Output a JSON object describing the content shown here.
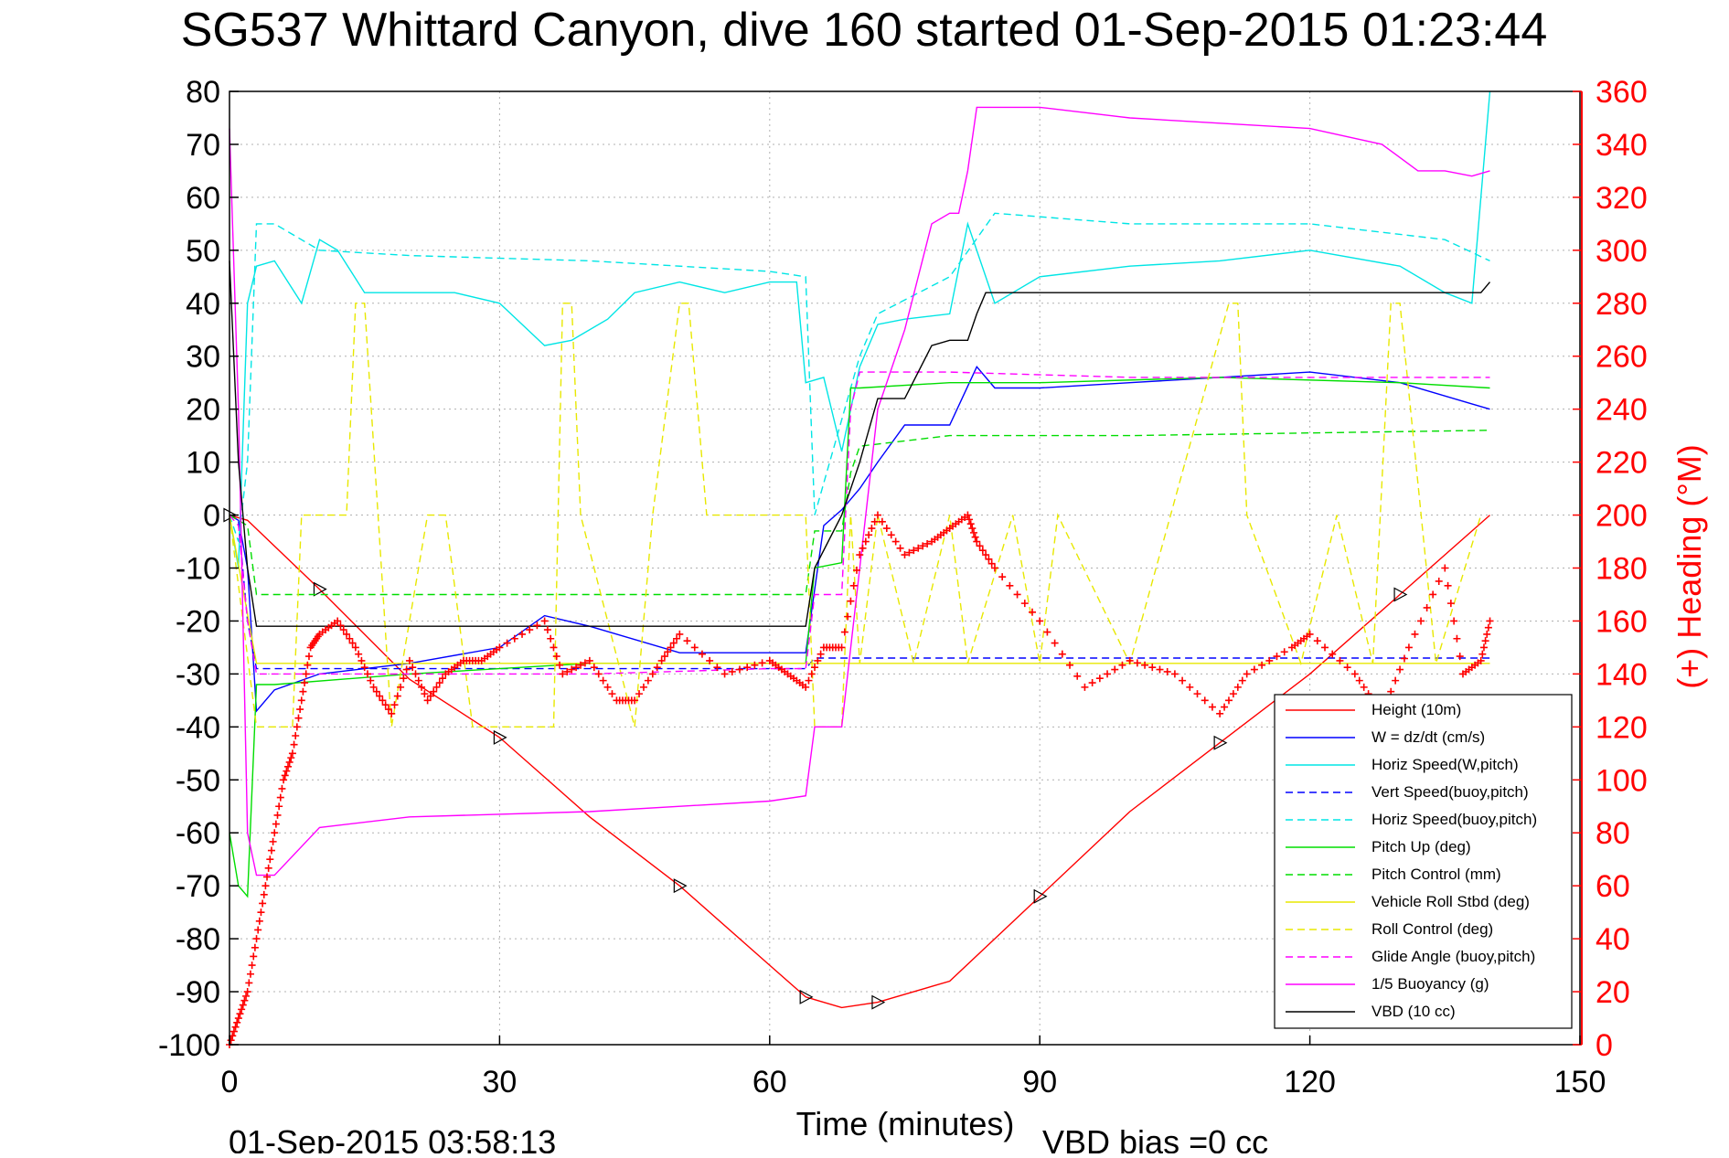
{
  "chart_data": {
    "type": "line",
    "title": "SG537 Whittard Canyon, dive 160 started 01-Sep-2015 01:23:44",
    "xlabel": "Time (minutes)",
    "ylabel_right": "(+) Heading (°M)",
    "footer_left": "01-Sep-2015 03:58:13",
    "footer_right": "VBD bias =0 cc",
    "xlim": [
      0,
      150
    ],
    "ylim": [
      -100,
      80
    ],
    "ylim_right": [
      0,
      360
    ],
    "x_ticks": [
      "0",
      "30",
      "60",
      "90",
      "120",
      "150"
    ],
    "y_ticks": [
      "80",
      "70",
      "60",
      "50",
      "40",
      "30",
      "20",
      "10",
      "0",
      "-10",
      "-20",
      "-30",
      "-40",
      "-50",
      "-60",
      "-70",
      "-80",
      "-90",
      "-100"
    ],
    "y_ticks_right": [
      "360",
      "340",
      "320",
      "300",
      "280",
      "260",
      "240",
      "220",
      "200",
      "180",
      "160",
      "140",
      "120",
      "100",
      "80",
      "60",
      "40",
      "20",
      "0"
    ],
    "grid": true,
    "legend_position": "bottom-right",
    "series": [
      {
        "name": "Height (10m)",
        "color": "#ff0000",
        "dash": "solid",
        "axis": "left",
        "x": [
          0,
          2,
          10,
          20,
          30,
          40,
          50,
          60,
          64,
          68,
          72,
          80,
          90,
          100,
          110,
          120,
          130,
          140
        ],
        "y": [
          0,
          -1,
          -14,
          -31,
          -42,
          -57,
          -70,
          -85,
          -91,
          -93,
          -92,
          -88,
          -72,
          -56,
          -43,
          -30,
          -15,
          0
        ]
      },
      {
        "name": "W = dz/dt (cm/s)",
        "color": "#0000ff",
        "dash": "solid",
        "axis": "left",
        "x": [
          0,
          1,
          2,
          3,
          5,
          10,
          20,
          30,
          35,
          40,
          50,
          60,
          64,
          66,
          68,
          70,
          72,
          75,
          80,
          83,
          85,
          90,
          100,
          110,
          120,
          130,
          138,
          140
        ],
        "y": [
          0,
          -1,
          -10,
          -37,
          -33,
          -30,
          -28,
          -25,
          -19,
          -21,
          -26,
          -26,
          -26,
          -2,
          1,
          5,
          10,
          17,
          17,
          28,
          24,
          24,
          25,
          26,
          27,
          25,
          21,
          20
        ]
      },
      {
        "name": "Horiz Speed(W,pitch)",
        "color": "#00e5e5",
        "dash": "solid",
        "axis": "left",
        "x": [
          0,
          1,
          2,
          3,
          5,
          8,
          10,
          12,
          15,
          20,
          25,
          30,
          35,
          38,
          42,
          45,
          50,
          55,
          60,
          63,
          64,
          66,
          68,
          70,
          72,
          75,
          80,
          82,
          85,
          90,
          100,
          110,
          120,
          130,
          135,
          138,
          140
        ],
        "y": [
          0,
          -10,
          40,
          47,
          48,
          40,
          52,
          50,
          42,
          42,
          42,
          40,
          32,
          33,
          37,
          42,
          44,
          42,
          44,
          44,
          25,
          26,
          12,
          28,
          36,
          37,
          38,
          55,
          40,
          45,
          47,
          48,
          50,
          47,
          42,
          40,
          80
        ]
      },
      {
        "name": "Vert Speed(buoy,pitch)",
        "color": "#0000ff",
        "dash": "dashed",
        "axis": "left",
        "x": [
          0,
          1,
          2,
          3,
          64,
          65,
          66,
          70,
          140
        ],
        "y": [
          0,
          -1,
          -20,
          -29,
          -29,
          -27,
          -27,
          -27,
          -27
        ]
      },
      {
        "name": "Horiz Speed(buoy,pitch)",
        "color": "#00e5e5",
        "dash": "dashed",
        "axis": "left",
        "x": [
          0,
          1,
          2,
          3,
          5,
          10,
          20,
          40,
          60,
          64,
          65,
          70,
          72,
          80,
          85,
          100,
          120,
          135,
          140
        ],
        "y": [
          0,
          -5,
          10,
          55,
          55,
          50,
          49,
          48,
          46,
          45,
          0,
          30,
          38,
          45,
          57,
          55,
          55,
          52,
          48
        ]
      },
      {
        "name": "Pitch Up (deg)",
        "color": "#00dd00",
        "dash": "solid",
        "axis": "left",
        "x": [
          0,
          1,
          2,
          3,
          5,
          20,
          40,
          64,
          65,
          68,
          69,
          70,
          80,
          90,
          110,
          130,
          140
        ],
        "y": [
          -60,
          -70,
          -72,
          -32,
          -32,
          -30,
          -28,
          -28,
          -10,
          -9,
          24,
          24,
          25,
          25,
          26,
          25,
          24
        ]
      },
      {
        "name": "Pitch Control (mm)",
        "color": "#00dd00",
        "dash": "dashed",
        "axis": "left",
        "x": [
          0,
          2,
          3,
          30,
          64,
          65,
          68,
          69,
          70,
          80,
          81,
          100,
          140
        ],
        "y": [
          0,
          -2,
          -15,
          -15,
          -15,
          -3,
          -3,
          8,
          13,
          15,
          15,
          15,
          16
        ]
      },
      {
        "name": "Vehicle Roll Stbd (deg)",
        "color": "#e8e800",
        "dash": "solid",
        "axis": "left",
        "x": [
          0,
          3,
          10,
          20,
          30,
          40,
          50,
          60,
          64,
          70,
          80,
          90,
          100,
          110,
          120,
          130,
          140
        ],
        "y": [
          0,
          -28,
          -28,
          -28,
          -28,
          -28,
          -28,
          -28,
          -28,
          -28,
          -28,
          -28,
          -28,
          -28,
          -28,
          -28,
          -28
        ]
      },
      {
        "name": "Roll Control (deg)",
        "color": "#e8e800",
        "dash": "dashed",
        "axis": "left",
        "x": [
          0,
          3,
          7,
          8,
          13,
          14,
          15,
          18,
          22,
          24,
          27,
          36,
          37,
          38,
          39,
          45,
          47,
          50,
          51,
          53,
          64,
          65,
          68,
          69,
          70,
          72,
          76,
          80,
          82,
          87,
          90,
          92,
          100,
          111,
          112,
          113,
          119,
          123,
          127,
          129,
          130,
          134,
          139
        ],
        "y": [
          0,
          -40,
          -40,
          0,
          0,
          40,
          40,
          -40,
          0,
          0,
          -40,
          -40,
          40,
          40,
          0,
          -40,
          0,
          40,
          40,
          0,
          0,
          -40,
          -40,
          0,
          -28,
          0,
          -28,
          0,
          -28,
          0,
          -28,
          0,
          -28,
          40,
          40,
          0,
          -28,
          0,
          -28,
          40,
          40,
          -28,
          0
        ]
      },
      {
        "name": "Glide Angle (buoy,pitch)",
        "color": "#ff00ff",
        "dash": "dashed",
        "axis": "left",
        "x": [
          0,
          1,
          2,
          3,
          20,
          40,
          60,
          64,
          65,
          68,
          69,
          70,
          80,
          100,
          120,
          140
        ],
        "y": [
          0,
          -2,
          -20,
          -30,
          -30,
          -30,
          -29,
          -29,
          -15,
          -15,
          20,
          27,
          27,
          26,
          26,
          26
        ]
      },
      {
        "name": "1/5 Buoyancy (g)",
        "color": "#ff00ff",
        "dash": "solid",
        "axis": "left",
        "x": [
          0,
          1,
          2,
          3,
          5,
          10,
          20,
          40,
          60,
          64,
          65,
          68,
          72,
          75,
          78,
          80,
          81,
          82,
          83,
          85,
          90,
          100,
          120,
          128,
          132,
          135,
          138,
          140
        ],
        "y": [
          73,
          20,
          -60,
          -68,
          -68,
          -59,
          -57,
          -56,
          -54,
          -53,
          -40,
          -40,
          20,
          35,
          55,
          57,
          57,
          65,
          77,
          77,
          77,
          75,
          73,
          70,
          65,
          65,
          64,
          65
        ]
      },
      {
        "name": "VBD (10 cc)",
        "color": "#000000",
        "dash": "solid",
        "axis": "left",
        "x": [
          0,
          1,
          2,
          3,
          20,
          40,
          64,
          65,
          68,
          70,
          72,
          75,
          78,
          80,
          82,
          83,
          84,
          100,
          130,
          139,
          140
        ],
        "y": [
          48,
          10,
          -10,
          -21,
          -21,
          -21,
          -21,
          -10,
          0,
          10,
          22,
          22,
          32,
          33,
          33,
          38,
          42,
          42,
          42,
          42,
          44
        ]
      },
      {
        "name": "Heading",
        "color": "#ff0000",
        "dash": "markers",
        "axis": "right",
        "x": [
          0,
          1,
          2,
          3,
          4,
          5,
          6,
          7,
          8,
          9,
          10,
          12,
          14,
          16,
          18,
          20,
          22,
          24,
          26,
          28,
          30,
          35,
          37,
          40,
          43,
          45,
          48,
          50,
          55,
          60,
          62,
          64,
          66,
          68,
          70,
          72,
          75,
          78,
          80,
          82,
          83,
          85,
          90,
          95,
          100,
          105,
          110,
          113,
          118,
          120,
          125,
          128,
          131,
          135,
          137,
          139,
          140
        ],
        "y": [
          0,
          10,
          20,
          40,
          60,
          80,
          100,
          110,
          130,
          150,
          155,
          160,
          150,
          135,
          125,
          145,
          130,
          140,
          145,
          145,
          150,
          160,
          140,
          145,
          130,
          130,
          145,
          155,
          140,
          145,
          140,
          135,
          150,
          150,
          185,
          200,
          185,
          190,
          195,
          200,
          190,
          180,
          160,
          135,
          145,
          140,
          125,
          140,
          150,
          155,
          140,
          125,
          150,
          180,
          140,
          145,
          160
        ]
      }
    ]
  }
}
